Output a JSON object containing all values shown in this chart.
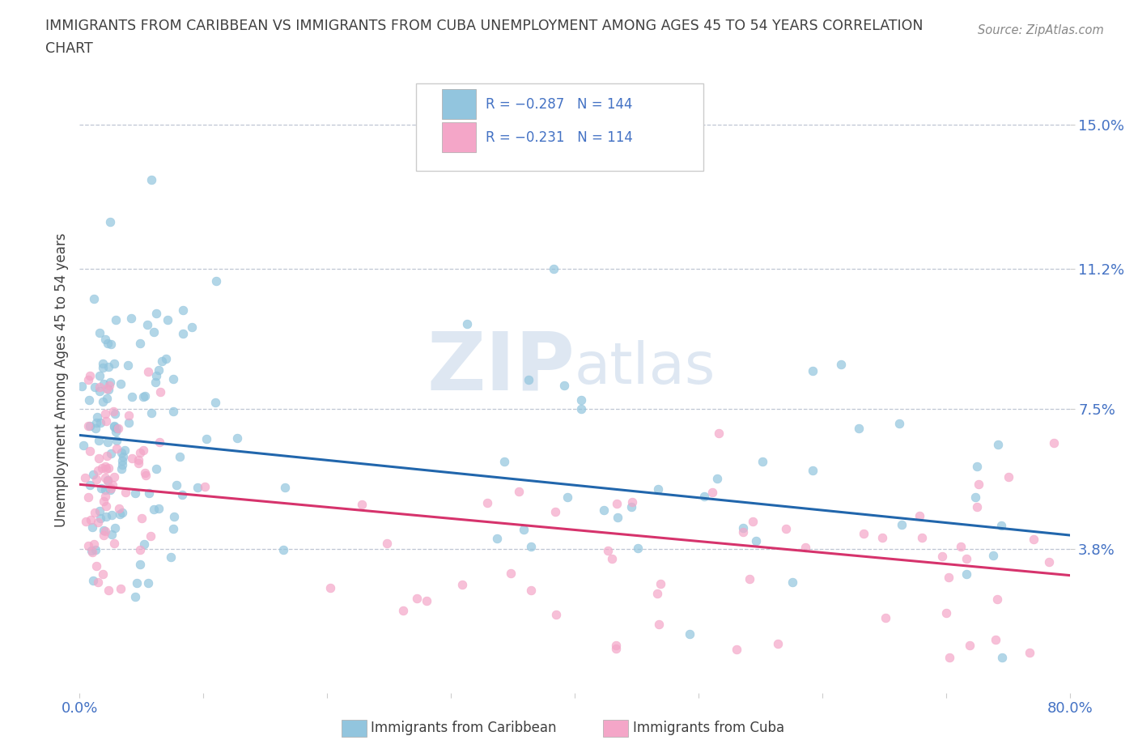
{
  "title_line1": "IMMIGRANTS FROM CARIBBEAN VS IMMIGRANTS FROM CUBA UNEMPLOYMENT AMONG AGES 45 TO 54 YEARS CORRELATION",
  "title_line2": "CHART",
  "source_text": "Source: ZipAtlas.com",
  "ylabel": "Unemployment Among Ages 45 to 54 years",
  "xlim": [
    0.0,
    0.8
  ],
  "ylim": [
    0.0,
    0.165
  ],
  "yticks": [
    0.038,
    0.075,
    0.112,
    0.15
  ],
  "ytick_labels": [
    "3.8%",
    "7.5%",
    "11.2%",
    "15.0%"
  ],
  "xticks": [
    0.0,
    0.1,
    0.2,
    0.3,
    0.4,
    0.5,
    0.6,
    0.7,
    0.8
  ],
  "xtick_labels": [
    "0.0%",
    "",
    "",
    "",
    "",
    "",
    "",
    "",
    "80.0%"
  ],
  "caribbean_color": "#92c5de",
  "cuba_color": "#f4a6c8",
  "caribbean_line_color": "#2166ac",
  "cuba_line_color": "#d6336c",
  "R_caribbean": -0.287,
  "N_caribbean": 144,
  "R_cuba": -0.231,
  "N_cuba": 114,
  "legend_label_caribbean": "Immigrants from Caribbean",
  "legend_label_cuba": "Immigrants from Cuba",
  "background_color": "#ffffff",
  "grid_color": "#b0b8c8",
  "title_color": "#404040",
  "tick_label_color": "#4472c4",
  "source_color": "#888888",
  "watermark_color": "#c8d8ea",
  "seed": 12345
}
